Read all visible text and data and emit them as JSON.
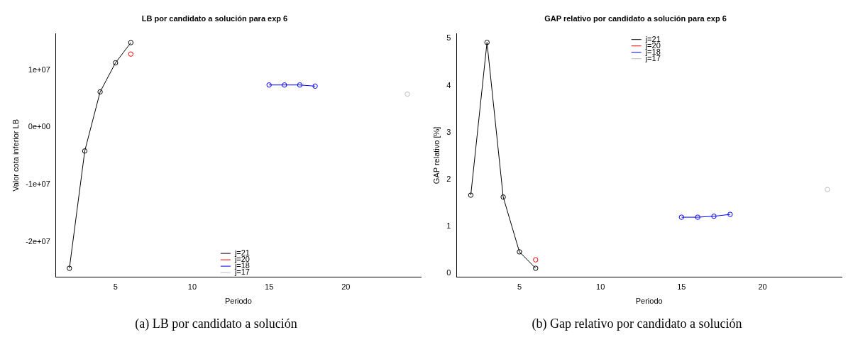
{
  "chart_data": [
    {
      "type": "line",
      "title": "LB por candidato a solución para exp 6",
      "xlabel": "Periodo",
      "ylabel": "Valor cota inferior LB",
      "annotations": [
        "(a) LB por candidato a solución"
      ],
      "xlim": [
        1.12,
        24.88
      ],
      "xticks": [
        5,
        10,
        15,
        20
      ],
      "ylim": [
        -26200000,
        16400000
      ],
      "yticks": [
        {
          "value": -20000000,
          "label": "-2e+07"
        },
        {
          "value": -10000000,
          "label": "-1e+07"
        },
        {
          "value": 0,
          "label": "0e+00"
        },
        {
          "value": 10000000,
          "label": "1e+07"
        }
      ],
      "grid": false,
      "legend": "bottom",
      "marker": "circle",
      "line_style": "solid",
      "series": [
        {
          "name": "j=21",
          "color": "#000000",
          "x": [
            2,
            3,
            4,
            5,
            6
          ],
          "values": [
            -24650000,
            -4140000,
            6190000,
            11270000,
            14800000
          ]
        },
        {
          "name": "j=20",
          "color": "#ff0000",
          "x": [
            6
          ],
          "values": [
            12800000
          ]
        },
        {
          "name": "j=18",
          "color": "#0000ff",
          "x": [
            15,
            16,
            17,
            18
          ],
          "values": [
            7400000,
            7400000,
            7400000,
            7200000
          ]
        },
        {
          "name": "j=17",
          "color": "#bebebe",
          "x": [
            24
          ],
          "values": [
            5800000
          ]
        }
      ]
    },
    {
      "type": "line",
      "title": "GAP relativo por candidato a solución para exp 6",
      "xlabel": "Periodo",
      "ylabel": "GAP relativo [%]",
      "annotations": [
        "(b) Gap relativo por candidato a solución"
      ],
      "xlim": [
        1.12,
        24.88
      ],
      "xticks": [
        5,
        10,
        15,
        20
      ],
      "ylim": [
        -0.09,
        5.11
      ],
      "yticks": [
        0,
        1,
        2,
        3,
        4,
        5
      ],
      "grid": false,
      "legend": "top",
      "marker": "circle",
      "line_style": "solid",
      "series": [
        {
          "name": "j=21",
          "color": "#000000",
          "x": [
            2,
            3,
            4,
            5,
            6
          ],
          "values": [
            1.66,
            4.92,
            1.62,
            0.45,
            0.1
          ]
        },
        {
          "name": "j=20",
          "color": "#ff0000",
          "x": [
            6
          ],
          "values": [
            0.28
          ]
        },
        {
          "name": "j=18",
          "color": "#0000ff",
          "x": [
            15,
            16,
            17,
            18
          ],
          "values": [
            1.19,
            1.19,
            1.21,
            1.25
          ]
        },
        {
          "name": "j=17",
          "color": "#bebebe",
          "x": [
            24
          ],
          "values": [
            1.78
          ]
        }
      ]
    }
  ]
}
